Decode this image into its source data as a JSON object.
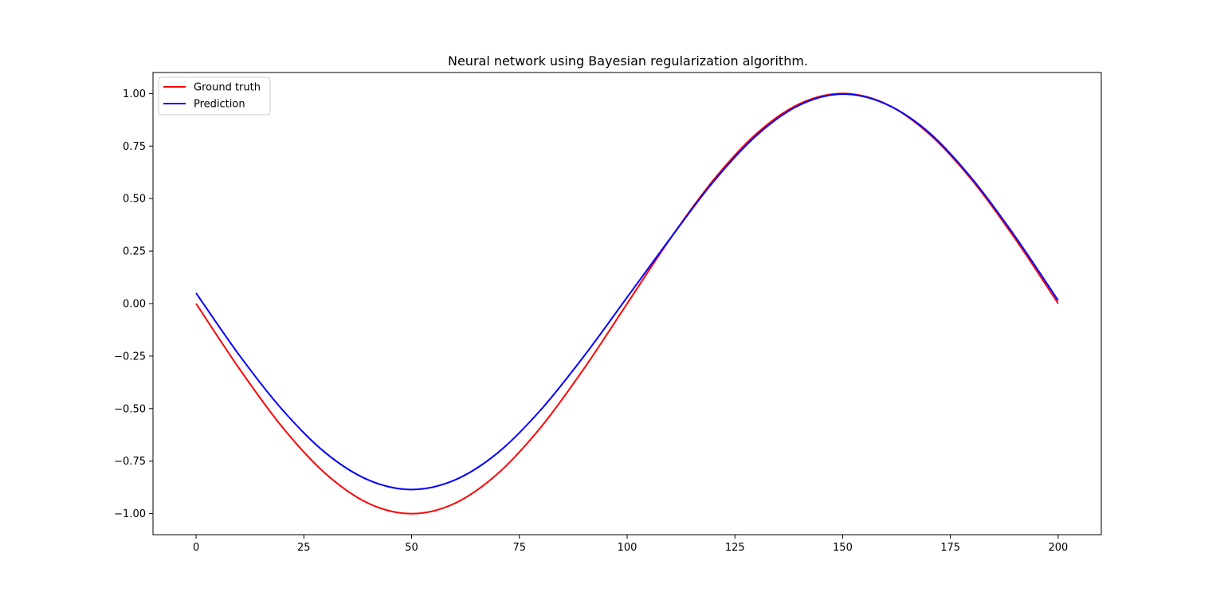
{
  "chart_data": {
    "type": "line",
    "title": "Neural network using Bayesian regularization algorithm.",
    "xlabel": "",
    "ylabel": "",
    "xlim": [
      -10,
      210
    ],
    "ylim": [
      -1.1,
      1.1
    ],
    "x_ticks": [
      0,
      25,
      50,
      75,
      100,
      125,
      150,
      175,
      200
    ],
    "x_tick_labels": [
      "0",
      "25",
      "50",
      "75",
      "100",
      "125",
      "150",
      "175",
      "200"
    ],
    "y_ticks": [
      1.0,
      0.75,
      0.5,
      0.25,
      0.0,
      -0.25,
      -0.5,
      -0.75,
      -1.0
    ],
    "y_tick_labels": [
      "1.00",
      "0.75",
      "0.50",
      "0.25",
      "0.00",
      "−0.25",
      "−0.50",
      "−0.75",
      "−1.00"
    ],
    "grid": false,
    "legend_position": "upper-left",
    "x": [
      0,
      10,
      20,
      30,
      40,
      50,
      60,
      70,
      80,
      90,
      100,
      110,
      120,
      130,
      140,
      150,
      160,
      170,
      180,
      190,
      200
    ],
    "series": [
      {
        "name": "Ground truth",
        "color": "#ff0000",
        "values": [
          0.0,
          -0.309,
          -0.588,
          -0.809,
          -0.951,
          -1.0,
          -0.951,
          -0.809,
          -0.588,
          -0.309,
          0.0,
          0.309,
          0.588,
          0.809,
          0.951,
          1.0,
          0.951,
          0.809,
          0.588,
          0.309,
          0.0
        ]
      },
      {
        "name": "Prediction",
        "color": "#0000ff",
        "values": [
          0.05,
          -0.245,
          -0.505,
          -0.71,
          -0.84,
          -0.885,
          -0.84,
          -0.71,
          -0.505,
          -0.25,
          0.03,
          0.31,
          0.58,
          0.8,
          0.945,
          0.997,
          0.95,
          0.815,
          0.595,
          0.32,
          0.015
        ]
      }
    ]
  }
}
